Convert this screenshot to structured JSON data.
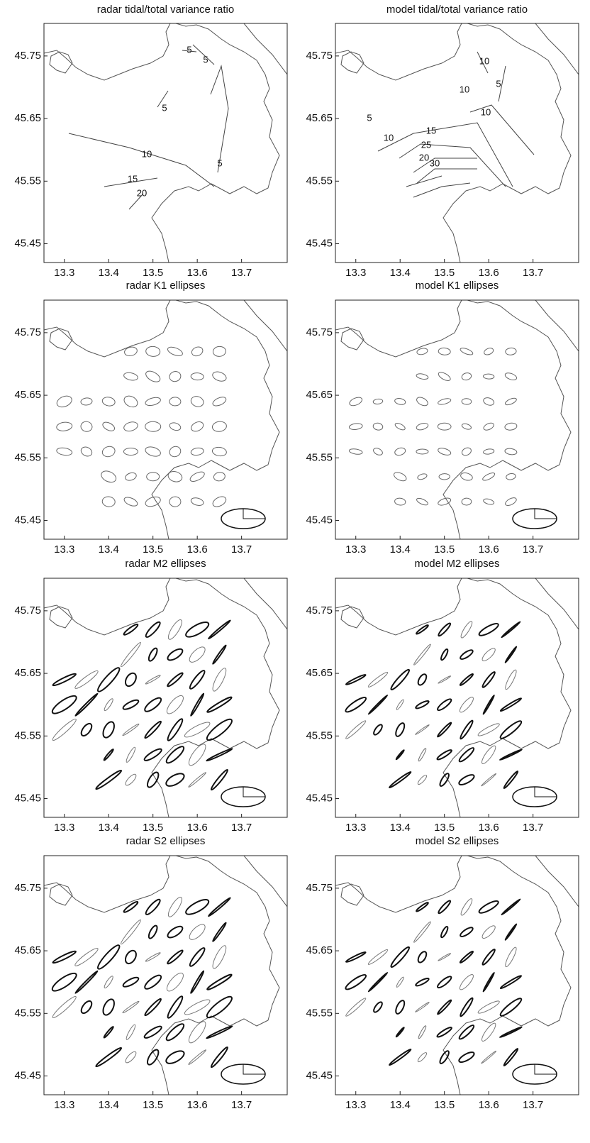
{
  "panels": [
    {
      "title": "radar tidal/total variance ratio",
      "xticks": [
        13.3,
        13.4,
        13.5,
        13.6,
        13.7
      ],
      "yticks": [
        45.45,
        45.55,
        45.65,
        45.75
      ],
      "contour_labels": [
        "5",
        "5",
        "5",
        "5",
        "10",
        "15",
        "20"
      ]
    },
    {
      "title": "model tidal/total variance ratio",
      "xticks": [
        13.3,
        13.4,
        13.5,
        13.6,
        13.7
      ],
      "yticks": [
        45.45,
        45.55,
        45.65,
        45.75
      ],
      "contour_labels": [
        "10",
        "5",
        "10",
        "10",
        "5",
        "10",
        "15",
        "25",
        "20",
        "30"
      ]
    },
    {
      "title": "radar K1 ellipses",
      "xticks": [
        13.3,
        13.4,
        13.5,
        13.6,
        13.7
      ],
      "yticks": [
        45.45,
        45.55,
        45.65,
        45.75
      ]
    },
    {
      "title": "model K1 ellipses",
      "xticks": [
        13.3,
        13.4,
        13.5,
        13.6,
        13.7
      ],
      "yticks": [
        45.45,
        45.55,
        45.65,
        45.75
      ]
    },
    {
      "title": "radar M2 ellipses",
      "xticks": [
        13.3,
        13.4,
        13.5,
        13.6,
        13.7
      ],
      "yticks": [
        45.45,
        45.55,
        45.65,
        45.75
      ]
    },
    {
      "title": "model M2 ellipses",
      "xticks": [
        13.3,
        13.4,
        13.5,
        13.6,
        13.7
      ],
      "yticks": [
        45.45,
        45.55,
        45.65,
        45.75
      ]
    },
    {
      "title": "radar S2 ellipses",
      "xticks": [
        13.3,
        13.4,
        13.5,
        13.6,
        13.7
      ],
      "yticks": [
        45.45,
        45.55,
        45.65,
        45.75
      ]
    },
    {
      "title": "model S2 ellipses",
      "xticks": [
        13.3,
        13.4,
        13.5,
        13.6,
        13.7
      ],
      "yticks": [
        45.45,
        45.55,
        45.65,
        45.75
      ]
    }
  ]
}
